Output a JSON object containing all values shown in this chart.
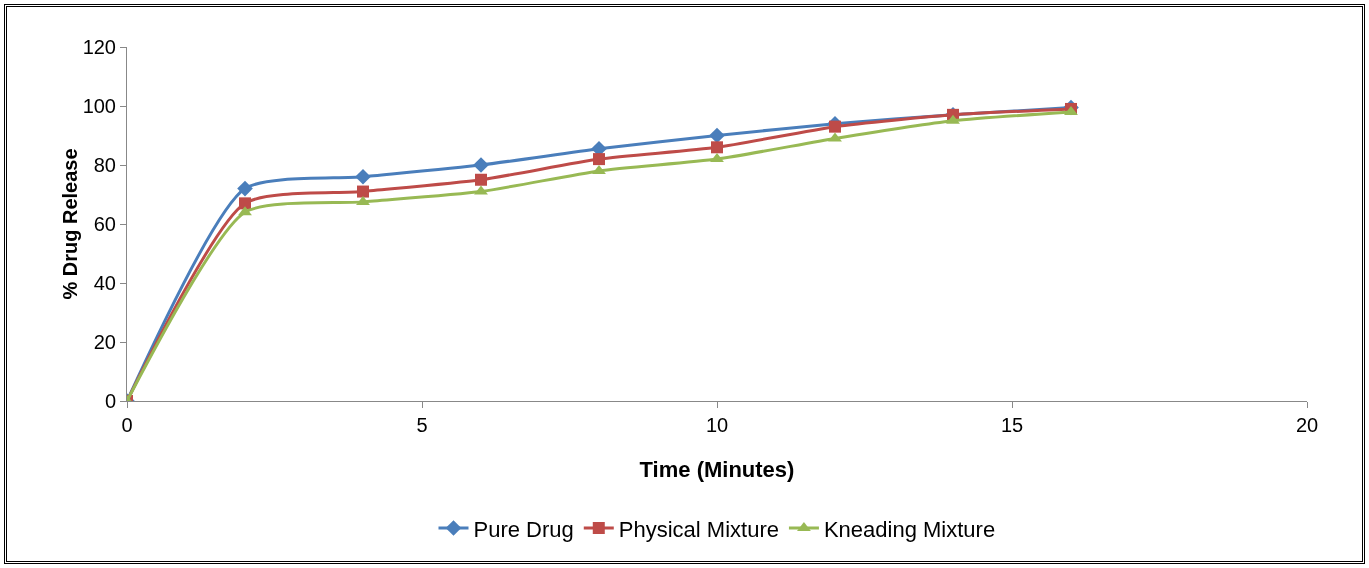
{
  "chart_data": {
    "type": "line",
    "xlabel": "Time (Minutes)",
    "ylabel": "% Drug Release",
    "x": [
      0,
      2,
      4,
      6,
      8,
      10,
      12,
      14,
      16
    ],
    "series": [
      {
        "name": "Pure Drug",
        "color": "#4a7ebb",
        "marker": "diamond",
        "values": [
          0,
          72,
          76,
          80,
          85.5,
          90,
          94,
          97,
          99.5
        ]
      },
      {
        "name": "Physical Mixture",
        "color": "#be4b48",
        "marker": "square",
        "values": [
          0,
          67,
          71,
          75,
          82,
          86,
          93,
          97,
          99
        ]
      },
      {
        "name": "Kneading Mixture",
        "color": "#98b954",
        "marker": "triangle",
        "values": [
          0,
          64,
          67.5,
          71,
          78,
          82,
          89,
          95,
          98
        ]
      }
    ],
    "xlim": [
      0,
      20
    ],
    "xticks": [
      0,
      5,
      10,
      15,
      20
    ],
    "ylim": [
      0,
      120
    ],
    "yticks": [
      0,
      20,
      40,
      60,
      80,
      100,
      120
    ],
    "grid": false,
    "legend": "bottom",
    "line_style": "solid"
  }
}
